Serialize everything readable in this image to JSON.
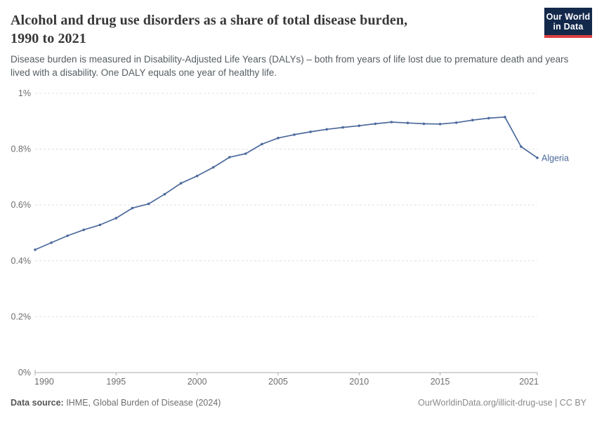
{
  "header": {
    "title_line1": "Alcohol and drug use disorders as a share of total disease burden,",
    "title_line2": "1990 to 2021",
    "subtitle_line1": "Disease burden is measured in Disability-Adjusted Life Years (DALYs) – both from years of life lost due to premature death",
    "subtitle_line2": "and years lived with a disability. One DALY equals one year of healthy life.",
    "logo_line1": "Our World",
    "logo_line2": "in Data"
  },
  "footer": {
    "data_source_label": "Data source:",
    "data_source_value": " IHME, Global Burden of Disease (2024)",
    "link": "OurWorldinData.org/illicit-drug-use | CC BY"
  },
  "colors": {
    "series": "#4c6a9c",
    "grid": "#e0e0e0",
    "axis": "#a9a9a9",
    "tick_text": "#6e6e6e",
    "logo_bg": "#13294b",
    "logo_red": "#dc3e42"
  },
  "chart_data": {
    "type": "line",
    "title": "Alcohol and drug use disorders as a share of total disease burden, 1990 to 2021",
    "subtitle": "Disease burden is measured in Disability-Adjusted Life Years (DALYs) – both from years of life lost due to premature death and years lived with a disability. One DALY equals one year of healthy life.",
    "entity_label": "Algeria",
    "unit": "%",
    "xlabel": "",
    "ylabel": "",
    "xlim": [
      1990,
      2021
    ],
    "ylim": [
      0,
      1
    ],
    "x_ticks": [
      1990,
      1995,
      2000,
      2005,
      2010,
      2015,
      2021
    ],
    "y_ticks": [
      0,
      0.2,
      0.4,
      0.6,
      0.8,
      1
    ],
    "y_tick_labels": [
      "0%",
      "0.2%",
      "0.4%",
      "0.6%",
      "0.8%",
      "1%"
    ],
    "grid": "horizontal-dashed",
    "legend": "entity-label-at-line-end",
    "x": [
      1990,
      1991,
      1992,
      1993,
      1994,
      1995,
      1996,
      1997,
      1998,
      1999,
      2000,
      2001,
      2002,
      2003,
      2004,
      2005,
      2006,
      2007,
      2008,
      2009,
      2010,
      2011,
      2012,
      2013,
      2014,
      2015,
      2016,
      2017,
      2018,
      2019,
      2020,
      2021
    ],
    "series": [
      {
        "name": "Algeria",
        "color": "#4c6a9c",
        "values": [
          0.44,
          0.465,
          0.49,
          0.511,
          0.529,
          0.553,
          0.589,
          0.604,
          0.639,
          0.678,
          0.704,
          0.735,
          0.771,
          0.784,
          0.818,
          0.84,
          0.852,
          0.862,
          0.871,
          0.878,
          0.884,
          0.891,
          0.897,
          0.894,
          0.891,
          0.89,
          0.895,
          0.904,
          0.911,
          0.915,
          0.809,
          0.769
        ]
      }
    ]
  }
}
